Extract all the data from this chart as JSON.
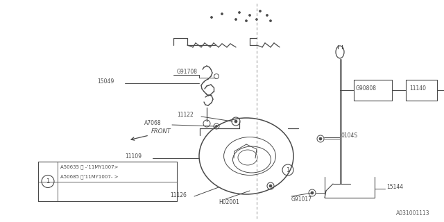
{
  "bg_color": "#ffffff",
  "line_color": "#4a4a4a",
  "ref_code": "A031001113",
  "legend_items": [
    "A50635 ＜ -’11MY1007>",
    "A50685 （’11MY1007- >"
  ],
  "legend_text": [
    "A50635（ -’11MY1007>",
    "A50685（’11MY1007- >"
  ]
}
